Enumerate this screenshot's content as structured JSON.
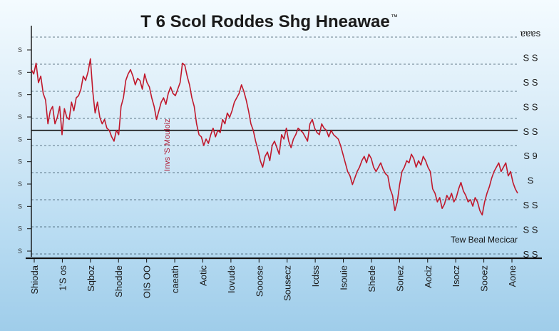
{
  "chart_data": {
    "type": "line",
    "title": "T 6 Scol Roddes Shg Hneawae",
    "title_suffix": "™",
    "xlabel": "",
    "ylabel": "",
    "grid": true,
    "legend": "none",
    "line_color": "#c0182c",
    "x_tick_labels": [
      "Shioda",
      "1'S os",
      "Sqboz",
      "Shodde",
      "OIS OO",
      "caeath",
      "Aotic",
      "Iovude",
      "Sooose",
      "Sousecz",
      "Icdss",
      "Isouie",
      "Shede",
      "Sonez",
      "Aociz",
      "Isocz",
      "Sooez",
      "Aone"
    ],
    "right_tick_labels": [
      "ɐɐɐs",
      "S S",
      "S S",
      "S S",
      "S S",
      "S 9",
      "S",
      "S S",
      "S S",
      "S S"
    ],
    "left_tick_labels": [
      "S",
      "S",
      "S",
      "S",
      "S",
      "S",
      "S",
      "S",
      "S",
      "S"
    ],
    "annotations": {
      "vertical_label": "Invs 'S Mouloiz",
      "bottom_right_label": "Tew Beal Mecicar"
    },
    "x_range": [
      0,
      100
    ],
    "y_range": [
      0,
      100
    ],
    "reference_line": 57,
    "series": [
      {
        "values": [
          85,
          83,
          88,
          79,
          82,
          74,
          71,
          60,
          66,
          68,
          60,
          63,
          68,
          55,
          67,
          63,
          62,
          70,
          66,
          72,
          73,
          76,
          82,
          80,
          84,
          90,
          75,
          65,
          70,
          63,
          60,
          62,
          58,
          57,
          54,
          52,
          57,
          55,
          68,
          72,
          80,
          83,
          85,
          82,
          78,
          81,
          80,
          76,
          83,
          79,
          77,
          72,
          68,
          62,
          66,
          70,
          72,
          69,
          74,
          77,
          74,
          73,
          76,
          79,
          88,
          87,
          82,
          78,
          72,
          68,
          60,
          55,
          54,
          50,
          53,
          51,
          55,
          58,
          54,
          57,
          56,
          62,
          60,
          65,
          63,
          66,
          70,
          72,
          74,
          78,
          75,
          71,
          66,
          60,
          57,
          52,
          48,
          43,
          40,
          45,
          47,
          43,
          50,
          52,
          49,
          46,
          55,
          53,
          58,
          52,
          49,
          53,
          55,
          58,
          57,
          56,
          54,
          52,
          60,
          62,
          58,
          56,
          55,
          60,
          58,
          57,
          54,
          57,
          55,
          54,
          53,
          50,
          46,
          42,
          38,
          36,
          32,
          35,
          38,
          40,
          43,
          45,
          42,
          46,
          44,
          40,
          38,
          40,
          42,
          39,
          37,
          36,
          30,
          27,
          20,
          24,
          32,
          38,
          40,
          43,
          42,
          46,
          44,
          40,
          43,
          41,
          45,
          43,
          40,
          38,
          30,
          28,
          24,
          26,
          21,
          23,
          27,
          25,
          28,
          24,
          26,
          30,
          33,
          29,
          27,
          24,
          25,
          22,
          26,
          24,
          20,
          18,
          24,
          28,
          31,
          35,
          38,
          40,
          42,
          38,
          40,
          42,
          36,
          38,
          33,
          30,
          28
        ]
      }
    ]
  }
}
